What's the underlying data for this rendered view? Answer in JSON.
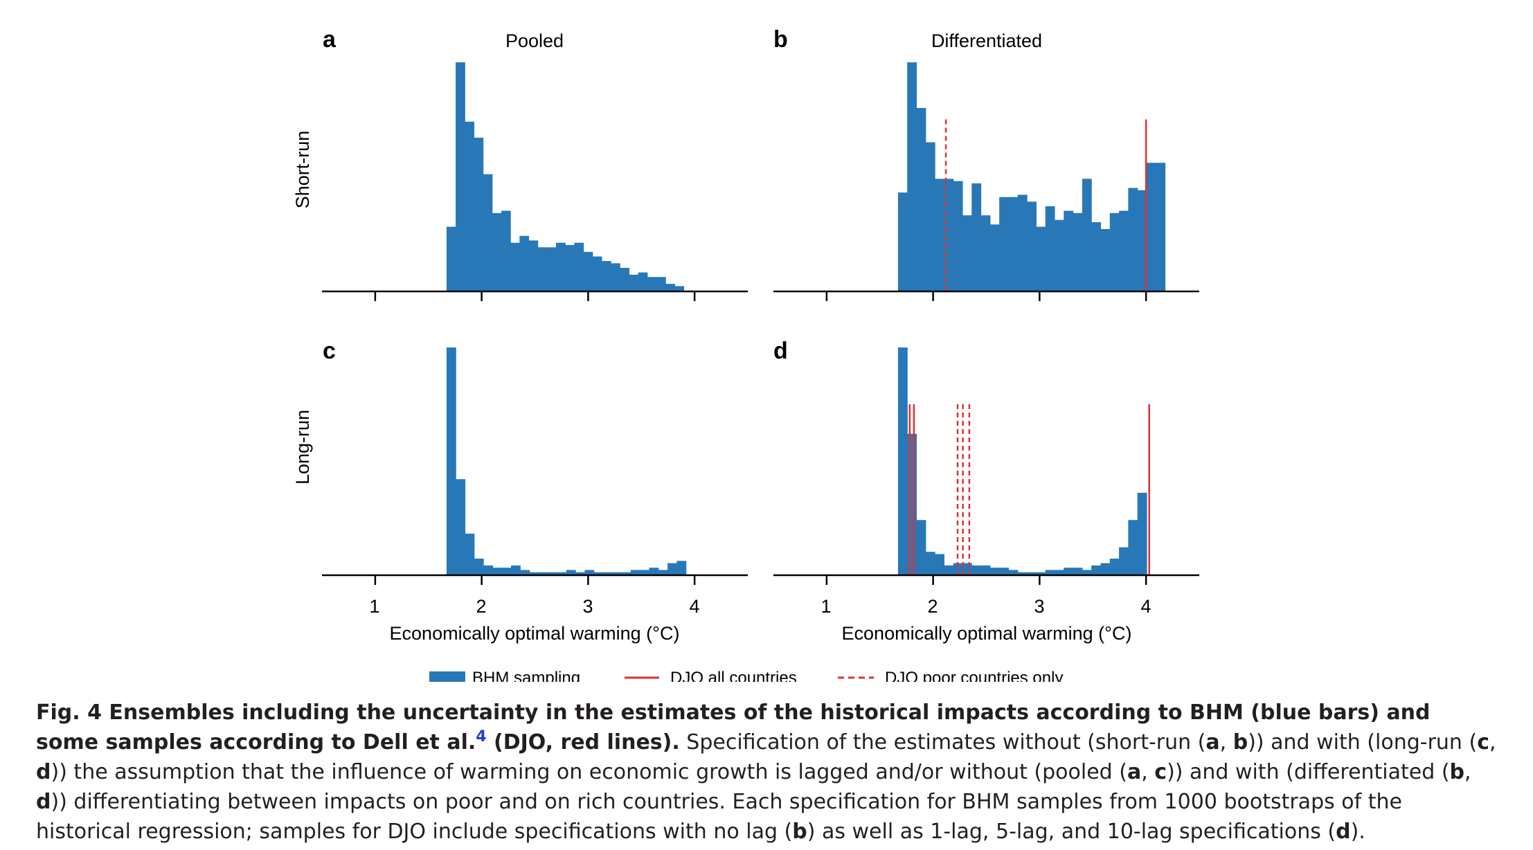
{
  "colors": {
    "bar": "#2878b8",
    "djo": "#e03030",
    "axis": "#000000"
  },
  "column_titles": [
    "Pooled",
    "Differentiated"
  ],
  "row_labels": [
    "Short-run",
    "Long-run"
  ],
  "xlabel": "Economically optimal warming (°C)",
  "xticks": [
    "1",
    "2",
    "3",
    "4"
  ],
  "legend": [
    {
      "label": "BHM sampling",
      "kind": "bar"
    },
    {
      "label": "DJO all countries",
      "kind": "solid"
    },
    {
      "label": "DJO poor countries only",
      "kind": "dashed"
    }
  ],
  "chart_data": [
    {
      "panel": "a",
      "type": "bar",
      "title": "Pooled",
      "ylabel": "Short-run",
      "xlabel": "",
      "xlim": [
        0.5,
        4.5
      ],
      "ylim": [
        0,
        1
      ],
      "bin_start": 1.67,
      "bin_width": 0.0857,
      "values": [
        0.28,
        1.0,
        0.74,
        0.67,
        0.51,
        0.34,
        0.35,
        0.21,
        0.24,
        0.22,
        0.19,
        0.19,
        0.21,
        0.2,
        0.21,
        0.17,
        0.15,
        0.13,
        0.12,
        0.1,
        0.07,
        0.08,
        0.06,
        0.06,
        0.03,
        0.02
      ]
    },
    {
      "panel": "b",
      "type": "bar",
      "title": "Differentiated",
      "ylabel": "",
      "xlabel": "",
      "xlim": [
        0.5,
        4.5
      ],
      "ylim": [
        0,
        1
      ],
      "bin_start": 1.67,
      "bin_width": 0.0865,
      "values": [
        0.43,
        1.0,
        0.8,
        0.65,
        0.49,
        0.49,
        0.48,
        0.33,
        0.47,
        0.33,
        0.29,
        0.41,
        0.41,
        0.42,
        0.39,
        0.28,
        0.37,
        0.31,
        0.35,
        0.34,
        0.49,
        0.3,
        0.27,
        0.34,
        0.35,
        0.45,
        0.44,
        0.56,
        0.56
      ],
      "djo_solid": [
        4.0
      ],
      "djo_dashed": [
        2.12
      ],
      "djo_height": 0.75
    },
    {
      "panel": "c",
      "type": "bar",
      "title": "",
      "ylabel": "Long-run",
      "xlabel": "",
      "xlim": [
        0.5,
        4.5
      ],
      "ylim": [
        0,
        1
      ],
      "bin_start": 1.67,
      "bin_width": 0.0865,
      "values": [
        1.0,
        0.42,
        0.18,
        0.07,
        0.04,
        0.03,
        0.03,
        0.04,
        0.02,
        0.01,
        0.01,
        0.01,
        0.01,
        0.02,
        0.01,
        0.02,
        0.01,
        0.01,
        0.01,
        0.01,
        0.02,
        0.02,
        0.03,
        0.02,
        0.05,
        0.06
      ]
    },
    {
      "panel": "d",
      "type": "bar",
      "title": "",
      "ylabel": "",
      "xlabel": "Economically optimal warming (°C)",
      "xlim": [
        0.5,
        4.5
      ],
      "ylim": [
        0,
        1
      ],
      "bin_start": 1.67,
      "bin_width": 0.0865,
      "values": [
        1.0,
        0.62,
        0.24,
        0.1,
        0.09,
        0.04,
        0.05,
        0.05,
        0.04,
        0.04,
        0.03,
        0.03,
        0.02,
        0.01,
        0.01,
        0.01,
        0.02,
        0.02,
        0.03,
        0.03,
        0.02,
        0.04,
        0.05,
        0.07,
        0.12,
        0.24,
        0.36
      ],
      "djo_solid": [
        1.78,
        1.82,
        4.03
      ],
      "djo_dashed": [
        2.23,
        2.28,
        2.34
      ],
      "djo_height": 0.75
    }
  ],
  "caption": {
    "bold_part1": "Fig. 4 Ensembles including the uncertainty in the estimates of the historical impacts according to BHM (blue bars) and some samples according to Dell et al.",
    "ref_number": "4",
    "bold_part2": " (DJO, red lines).",
    "body_1": " Specification of the estimates without (short-run (",
    "b_a1": "a",
    "body_2": ", ",
    "b_b1": "b",
    "body_3": ")) and with (long-run (",
    "b_c1": "c",
    "body_4": ", ",
    "b_d1": "d",
    "body_5": ")) the assumption that the influence of warming on economic growth is lagged and/or without (pooled (",
    "b_a2": "a",
    "body_6": ", ",
    "b_c2": "c",
    "body_7": ")) and with (differentiated (",
    "b_b2": "b",
    "body_8": ", ",
    "b_d2": "d",
    "body_9": ")) differentiating between impacts on poor and on rich countries. Each specification for BHM samples from 1000 bootstraps of the historical regression; samples for DJO include specifications with no lag (",
    "b_b3": "b",
    "body_10": ") as well as 1-lag, 5-lag, and 10-lag specifications (",
    "b_d3": "d",
    "body_11": ")."
  }
}
